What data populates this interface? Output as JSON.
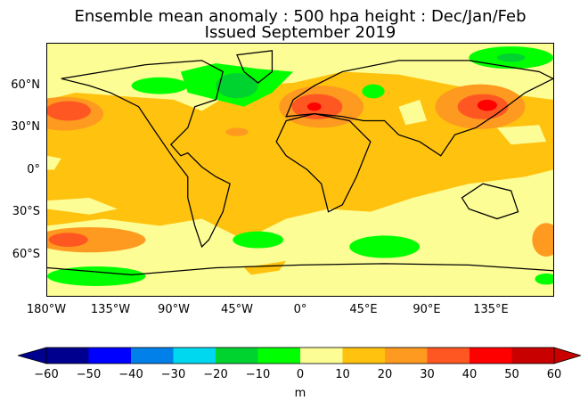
{
  "title": {
    "line1": "Ensemble mean anomaly : 500 hpa height : Dec/Jan/Feb",
    "line2": "Issued September 2019"
  },
  "lat_ticks": [
    "60°N",
    "30°N",
    "0°",
    "30°S",
    "60°S"
  ],
  "lon_ticks": [
    "180°W",
    "135°W",
    "90°W",
    "45°W",
    "0°",
    "45°E",
    "90°E",
    "135°E"
  ],
  "colorbar": {
    "unit": "m",
    "tick_labels": [
      "−60",
      "−50",
      "−40",
      "−30",
      "−20",
      "−10",
      "0",
      "10",
      "20",
      "30",
      "40",
      "50",
      "60"
    ],
    "levels": [
      -60,
      -50,
      -40,
      -30,
      -20,
      -10,
      0,
      10,
      20,
      30,
      40,
      50,
      60
    ],
    "colors": [
      "#00008f",
      "#0000ff",
      "#0080e8",
      "#00d8f0",
      "#00d22f",
      "#00ff00",
      "#fdfd96",
      "#ffc20e",
      "#fe9a1f",
      "#ff5722",
      "#ff0000",
      "#c80000"
    ],
    "extend": "both"
  }
}
